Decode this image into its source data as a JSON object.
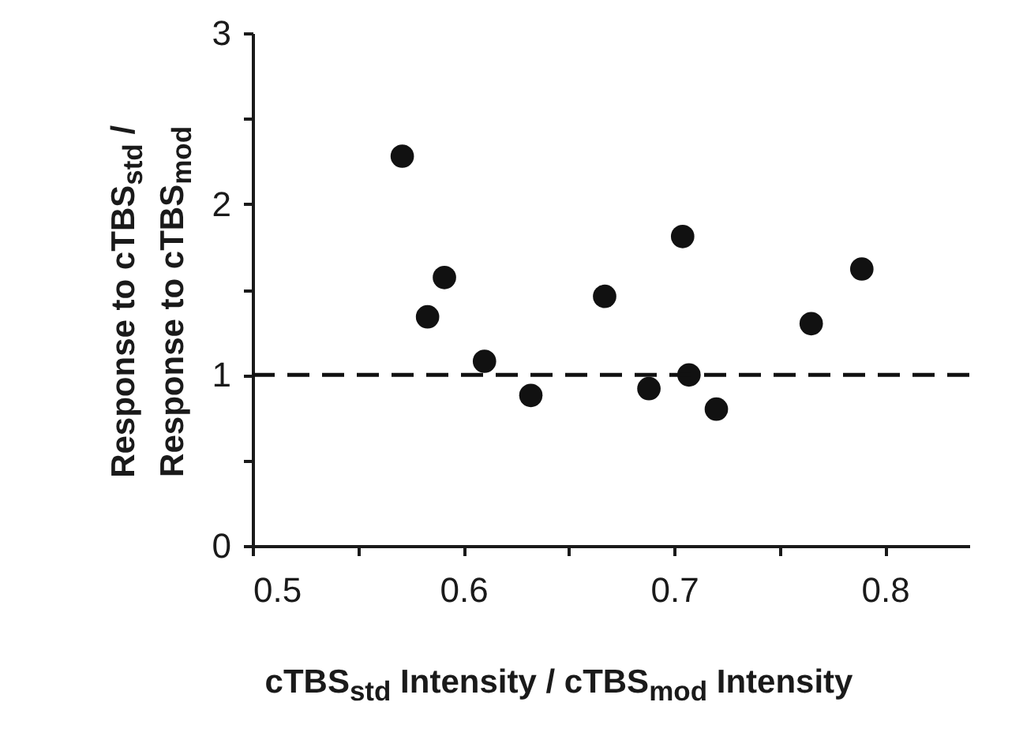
{
  "chart_data": {
    "type": "scatter",
    "xlabel": "cTBS$_{std}$ Intensity / cTBS$_{mod}$ Intensity",
    "ylabel": "Response to cTBS$_{std}$ / Response to cTBS$_{mod}$",
    "x": [
      0.571,
      0.583,
      0.591,
      0.61,
      0.632,
      0.667,
      0.688,
      0.704,
      0.707,
      0.72,
      0.765,
      0.789
    ],
    "values": [
      2.28,
      1.34,
      1.57,
      1.08,
      0.88,
      1.46,
      0.92,
      1.81,
      1.0,
      0.8,
      1.3,
      1.62
    ],
    "color": "#111111",
    "marker": "circle",
    "xlim": [
      0.5,
      0.84
    ],
    "xticks": [
      0.5,
      {
        "value": 0.55,
        "label": null
      },
      0.6,
      {
        "value": 0.65,
        "label": null
      },
      0.7,
      {
        "value": 0.75,
        "label": null
      },
      0.8
    ],
    "ylim": [
      0,
      3
    ],
    "yticks": [
      0,
      {
        "value": 0.5,
        "label": null
      },
      1,
      {
        "value": 1.5,
        "label": null
      },
      2,
      {
        "value": 2.5,
        "label": null
      },
      3
    ],
    "ref_lines": [
      {
        "axis": "y",
        "value": 1,
        "line_style": "dashed",
        "color": "#111111"
      }
    ],
    "grid": false
  }
}
